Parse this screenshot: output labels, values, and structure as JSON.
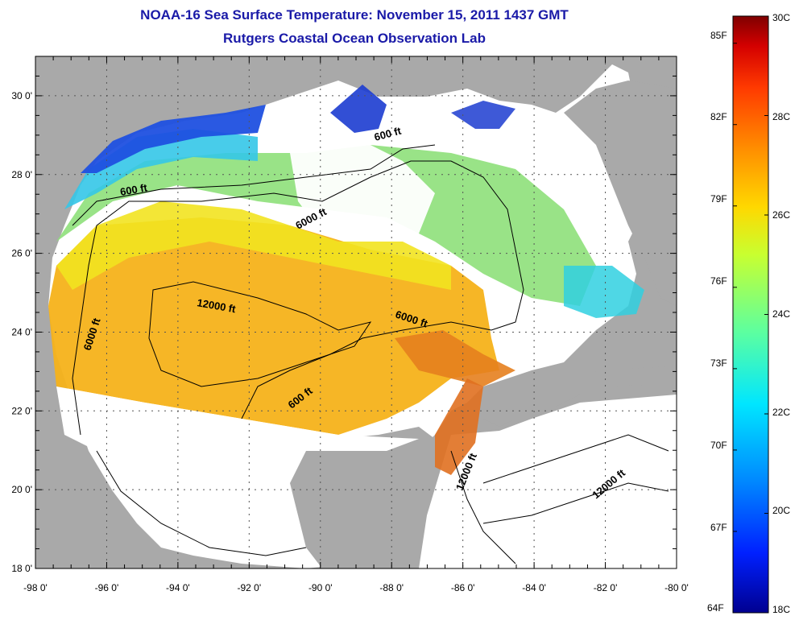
{
  "title": "NOAA-16 Sea Surface Temperature:  November 15, 2011 1437 GMT",
  "subtitle": "Rutgers Coastal Ocean Observation Lab",
  "lon_ticks": [
    "-98 0'",
    "-96 0'",
    "-94 0'",
    "-92 0'",
    "-90 0'",
    "-88 0'",
    "-86 0'",
    "-84 0'",
    "-82 0'",
    "-80 0'"
  ],
  "lat_ticks": [
    "30 0'",
    "28 0'",
    "26 0'",
    "24 0'",
    "22 0'",
    "20 0'",
    "18 0'"
  ],
  "contour_labels": [
    "600 ft",
    "600 ft",
    "6000 ft",
    "12000 ft",
    "6000 ft",
    "6000 ft",
    "600 ft",
    "12000 ft",
    "12000 ft"
  ],
  "colorbar": {
    "fahrenheit": [
      "85F",
      "82F",
      "79F",
      "76F",
      "73F",
      "70F",
      "67F",
      "64F"
    ],
    "celsius": [
      "30C",
      "28C",
      "26C",
      "24C",
      "22C",
      "20C",
      "18C"
    ],
    "colors": [
      "#7f0000",
      "#d40000",
      "#ff3a00",
      "#ff8c00",
      "#ffd800",
      "#c8ff30",
      "#5cffa0",
      "#00e6ff",
      "#0088ff",
      "#0020ff",
      "#000090"
    ]
  },
  "land_color": "#a9a9a9",
  "water_color": "#ffffff"
}
